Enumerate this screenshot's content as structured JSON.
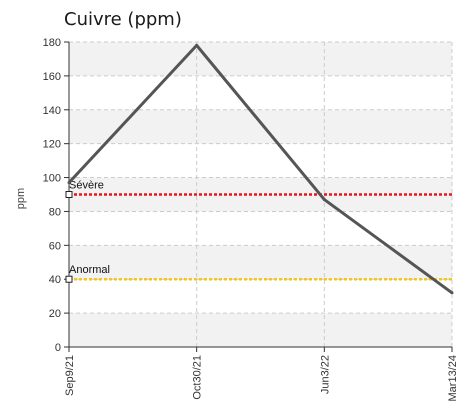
{
  "chart_data": {
    "type": "line",
    "title": "Cuivre (ppm)",
    "ylabel": "ppm",
    "xlabel": "",
    "ylim": [
      0,
      180
    ],
    "yticks": [
      0,
      20,
      40,
      60,
      80,
      100,
      120,
      140,
      160,
      180
    ],
    "categories": [
      "Sep9/21",
      "Oct30/21",
      "Jun3/22",
      "Mar13/24"
    ],
    "series": [
      {
        "values": [
          97,
          178,
          87,
          32
        ],
        "color": "#555555"
      }
    ],
    "thresholds": [
      {
        "label": "Sévère",
        "value": 90,
        "color": "#e8141b"
      },
      {
        "label": "Anormal",
        "value": 40,
        "color": "#f2c81a"
      }
    ],
    "grid": true,
    "band_color": "#f2f2f2"
  }
}
